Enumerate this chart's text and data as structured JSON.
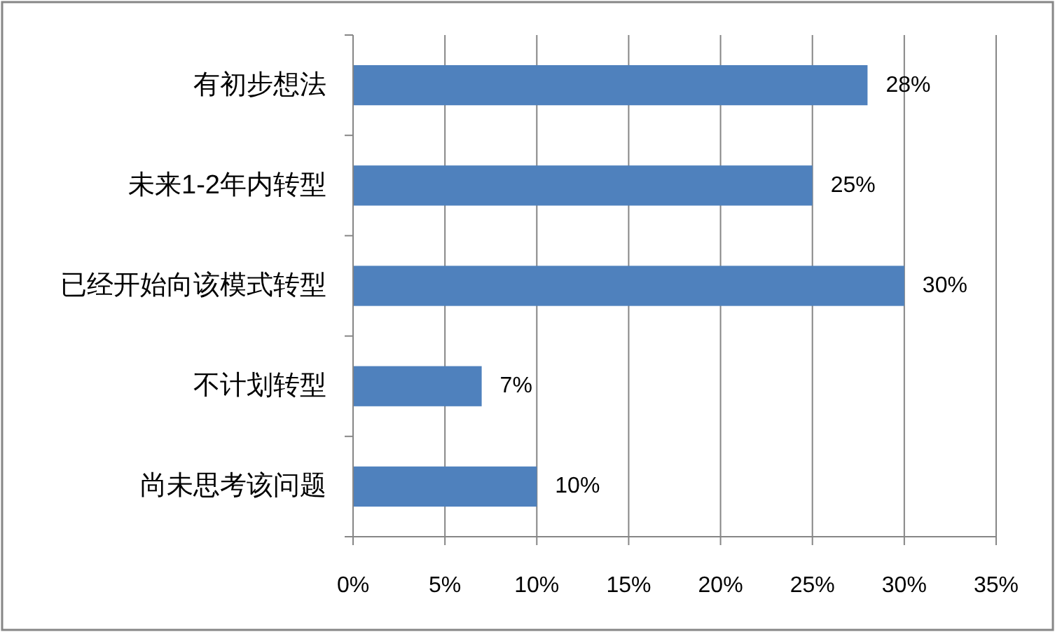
{
  "chart_data": {
    "type": "bar",
    "orientation": "horizontal",
    "categories": [
      "有初步想法",
      "未来1-2年内转型",
      "已经开始向该模式转型",
      "不计划转型",
      "尚未思考该问题"
    ],
    "values": [
      28,
      25,
      30,
      7,
      10
    ],
    "color": "#4f81bd",
    "value_labels": [
      "28%",
      "25%",
      "30%",
      "7%",
      "10%"
    ],
    "xlim": [
      0,
      35
    ],
    "xticks": [
      {
        "value": 0,
        "label": "0%"
      },
      {
        "value": 5,
        "label": "5%"
      },
      {
        "value": 10,
        "label": "10%"
      },
      {
        "value": 15,
        "label": "15%"
      },
      {
        "value": 20,
        "label": "20%"
      },
      {
        "value": 25,
        "label": "25%"
      },
      {
        "value": 30,
        "label": "30%"
      },
      {
        "value": 35,
        "label": "35%"
      }
    ],
    "grid": "x"
  }
}
